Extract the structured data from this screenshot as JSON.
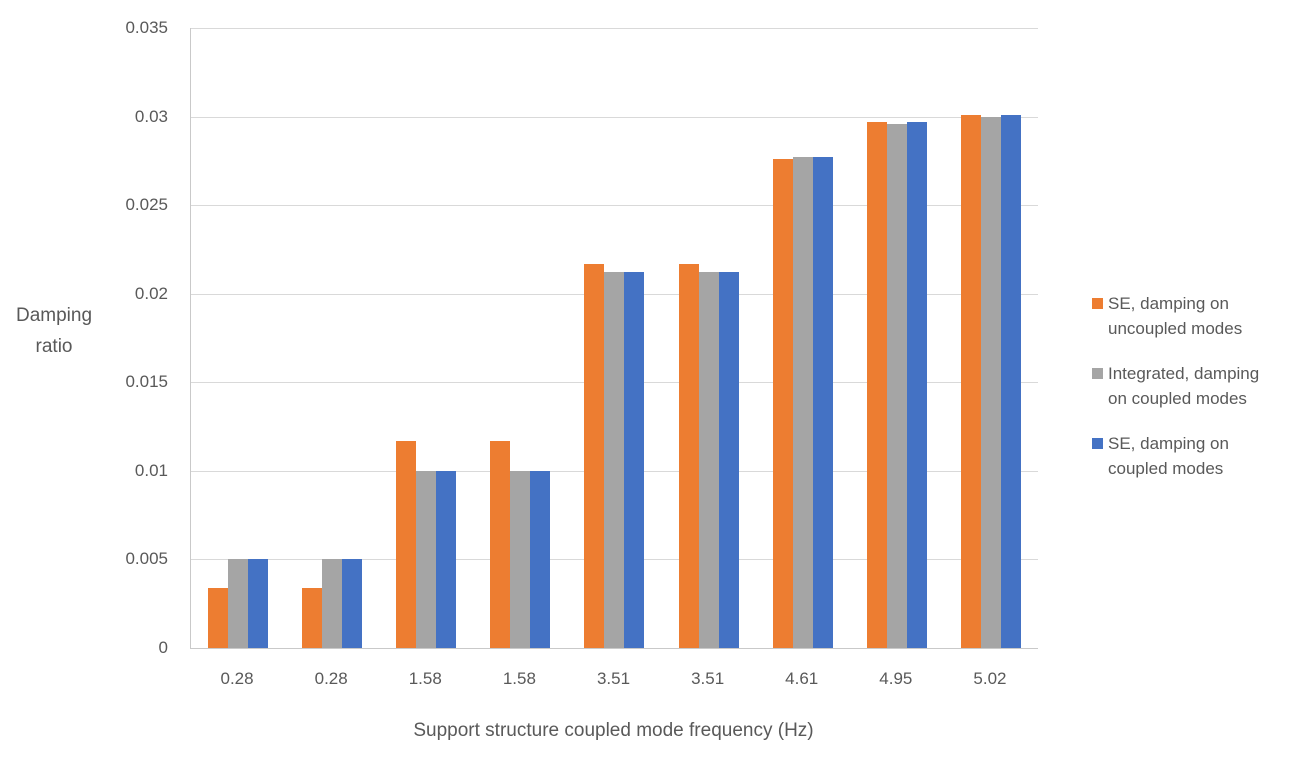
{
  "chart_data": {
    "type": "bar",
    "title": "",
    "categories": [
      "0.28",
      "0.28",
      "1.58",
      "1.58",
      "3.51",
      "3.51",
      "4.61",
      "4.95",
      "5.02"
    ],
    "series": [
      {
        "name": "SE, damping on uncoupled modes",
        "legend_lines": [
          "SE, damping on",
          "uncoupled modes"
        ],
        "color": "#ED7D31",
        "values": [
          0.0034,
          0.0034,
          0.0117,
          0.0117,
          0.0217,
          0.0217,
          0.0276,
          0.0297,
          0.0301
        ]
      },
      {
        "name": "Integrated, damping on coupled modes",
        "legend_lines": [
          "Integrated, damping",
          "on coupled modes"
        ],
        "color": "#A5A5A5",
        "values": [
          0.005,
          0.005,
          0.01,
          0.01,
          0.0212,
          0.0212,
          0.0277,
          0.0296,
          0.03
        ]
      },
      {
        "name": "SE, damping on coupled modes",
        "legend_lines": [
          "SE, damping on",
          "coupled modes"
        ],
        "color": "#4472C4",
        "values": [
          0.005,
          0.005,
          0.01,
          0.01,
          0.0212,
          0.0212,
          0.0277,
          0.0297,
          0.0301
        ]
      }
    ],
    "xlabel": "Support structure coupled mode frequency (Hz)",
    "ylabel": "Damping ratio",
    "ylabel_lines": [
      "Damping",
      "ratio"
    ],
    "ylim": [
      0,
      0.035
    ],
    "ytick_step": 0.005,
    "yticks": [
      "0",
      "0.005",
      "0.01",
      "0.015",
      "0.02",
      "0.025",
      "0.03",
      "0.035"
    ],
    "grid": true,
    "legend_position": "right",
    "colors": {
      "text": "#595959",
      "gridline": "#D9D9D9",
      "axis_line": "#C9C9C9",
      "background": "#FFFFFF"
    }
  }
}
